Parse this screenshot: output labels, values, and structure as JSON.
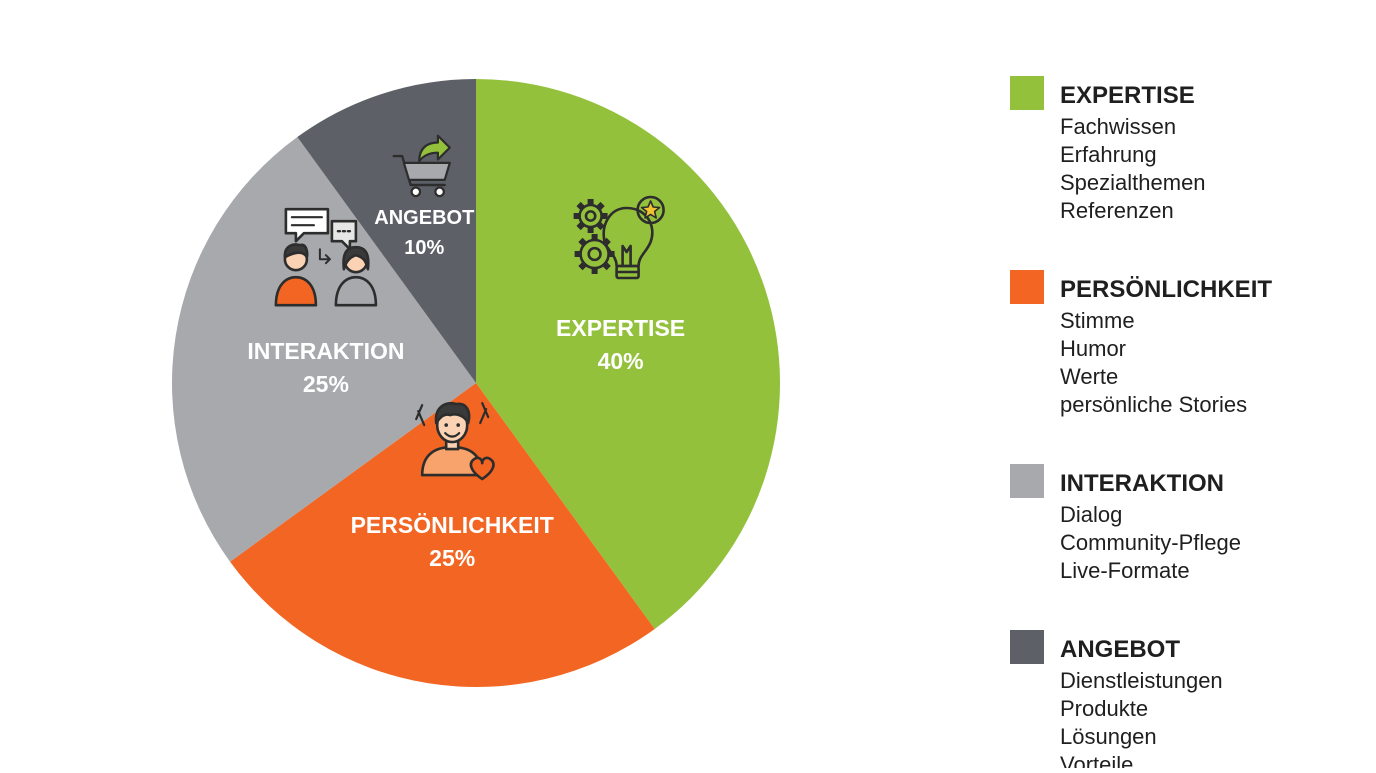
{
  "chart_data": {
    "type": "pie",
    "start_angle_deg": 0,
    "direction": "clockwise",
    "legend_position": "right",
    "slices": [
      {
        "label": "EXPERTISE",
        "value": 40,
        "value_label": "40%",
        "color": "#93c13c",
        "icon": "lightbulb-gears-icon",
        "legend_items": [
          "Fachwissen",
          "Erfahrung",
          "Spezialthemen",
          "Referenzen"
        ]
      },
      {
        "label": "PERSÖNLICHKEIT",
        "value": 25,
        "value_label": "25%",
        "color": "#f26522",
        "icon": "person-heart-icon",
        "legend_items": [
          "Stimme",
          "Humor",
          "Werte",
          "persönliche Stories"
        ]
      },
      {
        "label": "INTERAKTION",
        "value": 25,
        "value_label": "25%",
        "color": "#a7a9ad",
        "icon": "people-chat-icon",
        "legend_items": [
          "Dialog",
          "Community-Pflege",
          "Live-Formate"
        ]
      },
      {
        "label": "ANGEBOT",
        "value": 10,
        "value_label": "10%",
        "color": "#5d6066",
        "icon": "shopping-cart-icon",
        "legend_items": [
          "Dienstleistungen",
          "Produkte",
          "Lösungen",
          "Vorteile"
        ]
      }
    ]
  }
}
